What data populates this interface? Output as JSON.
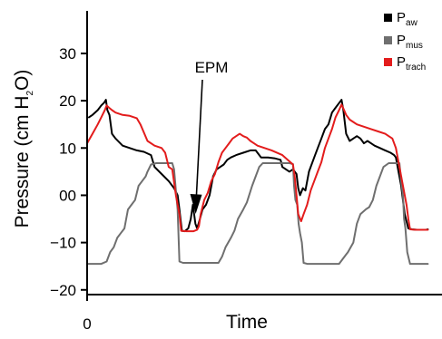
{
  "chart_data": {
    "type": "line",
    "title": "",
    "xlabel": "Time",
    "ylabel_parts": {
      "main": "Pressure (cm H",
      "sub": "2",
      "tail": "O)"
    },
    "xlim": [
      0,
      100
    ],
    "ylim": [
      -21,
      39
    ],
    "x_ticks": [
      {
        "value": 0,
        "label": "0"
      }
    ],
    "y_ticks": [
      {
        "value": -20,
        "label": "−20"
      },
      {
        "value": -10,
        "label": "−10"
      },
      {
        "value": 0,
        "label": "00"
      },
      {
        "value": 10,
        "label": "10"
      },
      {
        "value": 20,
        "label": "20"
      },
      {
        "value": 30,
        "label": "30"
      }
    ],
    "grid": false,
    "legend_placement": "top-right",
    "annotation": {
      "text": "EPM",
      "x": 30.3,
      "y": -3.5
    },
    "series": [
      {
        "name_main": "P",
        "name_sub": "aw",
        "color": "#000000",
        "points": [
          [
            0.5,
            16.5
          ],
          [
            1.5,
            17
          ],
          [
            3,
            18
          ],
          [
            4,
            19
          ],
          [
            4.8,
            19.6
          ],
          [
            5.3,
            20.2
          ],
          [
            5.7,
            18
          ],
          [
            6.3,
            17
          ],
          [
            7,
            13
          ],
          [
            8,
            12
          ],
          [
            10,
            10.5
          ],
          [
            12,
            10
          ],
          [
            14,
            9.5
          ],
          [
            16,
            9.2
          ],
          [
            18,
            8.5
          ],
          [
            19,
            6
          ],
          [
            21,
            4.5
          ],
          [
            23,
            3
          ],
          [
            24.5,
            1.5
          ],
          [
            25.5,
            0
          ],
          [
            26,
            -3
          ],
          [
            26.7,
            -7.5
          ],
          [
            27.5,
            -7.6
          ],
          [
            28.5,
            -7
          ],
          [
            29.2,
            -5
          ],
          [
            29.8,
            -2
          ],
          [
            30.5,
            -6
          ],
          [
            31,
            -7
          ],
          [
            31.8,
            -5
          ],
          [
            32.5,
            -3
          ],
          [
            33.5,
            -2
          ],
          [
            34.5,
            0
          ],
          [
            35.5,
            4
          ],
          [
            36.5,
            5.5
          ],
          [
            37.5,
            6
          ],
          [
            38.5,
            6.5
          ],
          [
            39.5,
            7.5
          ],
          [
            40.5,
            8
          ],
          [
            42,
            8.5
          ],
          [
            44,
            9
          ],
          [
            46,
            9.5
          ],
          [
            47.5,
            9.5
          ],
          [
            48,
            9
          ],
          [
            49,
            8
          ],
          [
            51,
            8
          ],
          [
            53,
            7.8
          ],
          [
            54.5,
            7.5
          ],
          [
            55,
            6
          ],
          [
            57,
            5
          ],
          [
            58,
            5.5
          ],
          [
            59,
            4.5
          ],
          [
            59.5,
            1.5
          ],
          [
            60,
            0
          ],
          [
            60.8,
            1.5
          ],
          [
            61.5,
            1
          ],
          [
            62.5,
            5
          ],
          [
            64,
            8
          ],
          [
            65,
            10
          ],
          [
            66,
            12
          ],
          [
            67,
            14
          ],
          [
            68,
            15
          ],
          [
            69,
            17.5
          ],
          [
            70,
            18.5
          ],
          [
            71,
            19.5
          ],
          [
            71.7,
            20.2
          ],
          [
            72.2,
            18
          ],
          [
            73,
            13
          ],
          [
            74,
            11.5
          ],
          [
            75,
            12
          ],
          [
            76,
            12.5
          ],
          [
            77,
            12
          ],
          [
            78,
            11
          ],
          [
            79,
            11.5
          ],
          [
            80,
            11
          ],
          [
            81,
            10.5
          ],
          [
            82.5,
            10
          ],
          [
            84,
            9.5
          ],
          [
            85.5,
            9
          ],
          [
            86.5,
            8.5
          ],
          [
            87,
            8
          ],
          [
            87.5,
            6
          ],
          [
            88.5,
            2
          ],
          [
            89.5,
            -4
          ],
          [
            90.5,
            -7
          ],
          [
            91.5,
            -7.2
          ],
          [
            93,
            -7.3
          ],
          [
            94.5,
            -7.3
          ],
          [
            95.5,
            -7.3
          ],
          [
            96,
            -7.2
          ]
        ]
      },
      {
        "name_main": "P",
        "name_sub": "mus",
        "color": "#6f6f6f",
        "points": [
          [
            0,
            -14.5
          ],
          [
            4,
            -14.5
          ],
          [
            5.5,
            -14
          ],
          [
            6.5,
            -12
          ],
          [
            7.5,
            -11
          ],
          [
            8.5,
            -9
          ],
          [
            9.5,
            -8
          ],
          [
            10.5,
            -7
          ],
          [
            11.5,
            -3
          ],
          [
            12.5,
            -2
          ],
          [
            13.5,
            -1
          ],
          [
            14.5,
            2
          ],
          [
            15.5,
            3
          ],
          [
            16.5,
            4
          ],
          [
            17,
            5
          ],
          [
            18,
            6.5
          ],
          [
            19.5,
            6.8
          ],
          [
            21,
            6.8
          ],
          [
            23,
            6.8
          ],
          [
            24,
            6.8
          ],
          [
            24.5,
            5.5
          ],
          [
            25,
            1
          ],
          [
            25.5,
            -3
          ],
          [
            26,
            -14
          ],
          [
            27,
            -14.3
          ],
          [
            34,
            -14.3
          ],
          [
            37,
            -14.3
          ],
          [
            38,
            -13
          ],
          [
            39,
            -11
          ],
          [
            40.5,
            -9
          ],
          [
            41.5,
            -7.5
          ],
          [
            42.5,
            -5
          ],
          [
            44,
            -3
          ],
          [
            45,
            -1.5
          ],
          [
            46.5,
            2
          ],
          [
            47.5,
            4
          ],
          [
            48.5,
            6
          ],
          [
            49.5,
            6.8
          ],
          [
            52,
            6.8
          ],
          [
            55,
            6.8
          ],
          [
            57,
            6.8
          ],
          [
            58,
            6.6
          ],
          [
            58.3,
            2
          ],
          [
            58.7,
            -1
          ],
          [
            59.2,
            -2
          ],
          [
            59.6,
            -6
          ],
          [
            60,
            -8
          ],
          [
            60.5,
            -10
          ],
          [
            61,
            -14.3
          ],
          [
            62,
            -14.5
          ],
          [
            67,
            -14.5
          ],
          [
            71,
            -14.5
          ],
          [
            72,
            -13.5
          ],
          [
            73.5,
            -12
          ],
          [
            75,
            -10
          ],
          [
            76,
            -6
          ],
          [
            77,
            -4
          ],
          [
            78.5,
            -3
          ],
          [
            79.5,
            -2.5
          ],
          [
            80.5,
            -1
          ],
          [
            81.5,
            2
          ],
          [
            82.5,
            4
          ],
          [
            83.5,
            6
          ],
          [
            85,
            6.8
          ],
          [
            88,
            6.8
          ],
          [
            88.5,
            3
          ],
          [
            89,
            0
          ],
          [
            89.3,
            -5
          ],
          [
            89.7,
            -7
          ],
          [
            90.2,
            -12
          ],
          [
            91,
            -14.5
          ],
          [
            93,
            -14.5
          ],
          [
            96,
            -14.5
          ]
        ]
      },
      {
        "name_main": "P",
        "name_sub": "trach",
        "color": "#e31c1c",
        "points": [
          [
            0,
            11
          ],
          [
            1.5,
            13
          ],
          [
            3,
            15
          ],
          [
            4,
            16.5
          ],
          [
            5,
            18
          ],
          [
            5.5,
            19
          ],
          [
            6.2,
            18.5
          ],
          [
            7,
            18
          ],
          [
            8,
            17.5
          ],
          [
            10,
            17
          ],
          [
            12,
            16.8
          ],
          [
            14,
            16.3
          ],
          [
            15,
            15
          ],
          [
            17,
            11.5
          ],
          [
            19,
            10.5
          ],
          [
            21,
            10
          ],
          [
            22,
            9
          ],
          [
            23,
            6
          ],
          [
            24,
            5.5
          ],
          [
            25,
            0
          ],
          [
            26,
            -4
          ],
          [
            26.5,
            -7.5
          ],
          [
            28,
            -7.6
          ],
          [
            30,
            -7.6
          ],
          [
            31,
            -7.3
          ],
          [
            31.5,
            -6.5
          ],
          [
            32,
            -4
          ],
          [
            33,
            -1
          ],
          [
            34,
            0.5
          ],
          [
            35,
            3
          ],
          [
            36,
            4.5
          ],
          [
            37,
            7
          ],
          [
            38,
            9
          ],
          [
            39,
            10
          ],
          [
            40,
            11
          ],
          [
            41,
            12
          ],
          [
            42,
            12.5
          ],
          [
            43,
            13
          ],
          [
            44,
            12.5
          ],
          [
            45,
            12.2
          ],
          [
            46,
            11.5
          ],
          [
            47,
            11
          ],
          [
            48,
            10.5
          ],
          [
            50,
            10
          ],
          [
            52,
            9.5
          ],
          [
            55,
            8.5
          ],
          [
            58,
            6.5
          ],
          [
            58.5,
            4
          ],
          [
            59,
            0
          ],
          [
            59.5,
            -4
          ],
          [
            60.3,
            -5.5
          ],
          [
            61,
            -4
          ],
          [
            62,
            -2
          ],
          [
            63,
            1
          ],
          [
            64,
            3
          ],
          [
            65,
            5
          ],
          [
            66,
            7
          ],
          [
            67,
            10
          ],
          [
            68,
            12
          ],
          [
            69,
            14
          ],
          [
            70,
            16.5
          ],
          [
            71,
            18
          ],
          [
            71.7,
            19.2
          ],
          [
            72.3,
            18.2
          ],
          [
            73,
            17
          ],
          [
            74,
            16
          ],
          [
            75,
            15.5
          ],
          [
            76,
            15
          ],
          [
            78,
            14.5
          ],
          [
            80,
            14
          ],
          [
            82,
            13.5
          ],
          [
            84,
            13
          ],
          [
            85,
            12.5
          ],
          [
            86,
            12
          ],
          [
            87,
            10
          ],
          [
            88,
            6
          ],
          [
            89,
            2
          ],
          [
            90,
            -2
          ],
          [
            90.5,
            -5
          ],
          [
            91,
            -7.2
          ],
          [
            92.5,
            -7.3
          ],
          [
            94,
            -7.3
          ],
          [
            96,
            -7.3
          ]
        ]
      }
    ]
  }
}
